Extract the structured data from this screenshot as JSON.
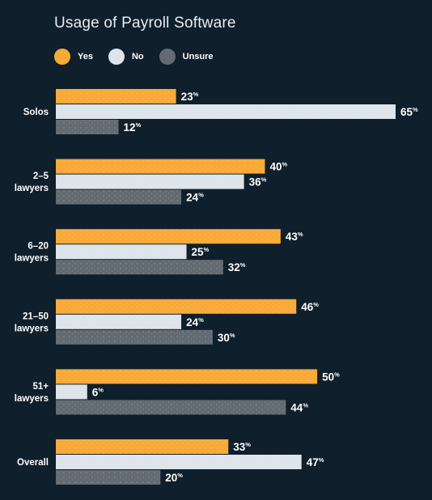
{
  "chart_data": {
    "type": "bar",
    "orientation": "horizontal",
    "title": "Usage of Payroll Software",
    "categories": [
      [
        "Solos"
      ],
      [
        "2–5",
        "lawyers"
      ],
      [
        "6–20",
        "lawyers"
      ],
      [
        "21–50",
        "lawyers"
      ],
      [
        "51+",
        "lawyers"
      ],
      [
        "Overall"
      ]
    ],
    "series": [
      {
        "name": "Yes",
        "color": "#f8a938",
        "values": [
          23,
          40,
          43,
          46,
          50,
          33
        ]
      },
      {
        "name": "No",
        "color": "#dde4ea",
        "values": [
          65,
          36,
          25,
          24,
          6,
          47
        ]
      },
      {
        "name": "Unsure",
        "color": "#636b72",
        "values": [
          12,
          24,
          32,
          30,
          44,
          20
        ]
      }
    ],
    "value_suffix": "%",
    "legend_position": "top-left",
    "xlim": [
      0,
      65
    ],
    "grid": false
  }
}
